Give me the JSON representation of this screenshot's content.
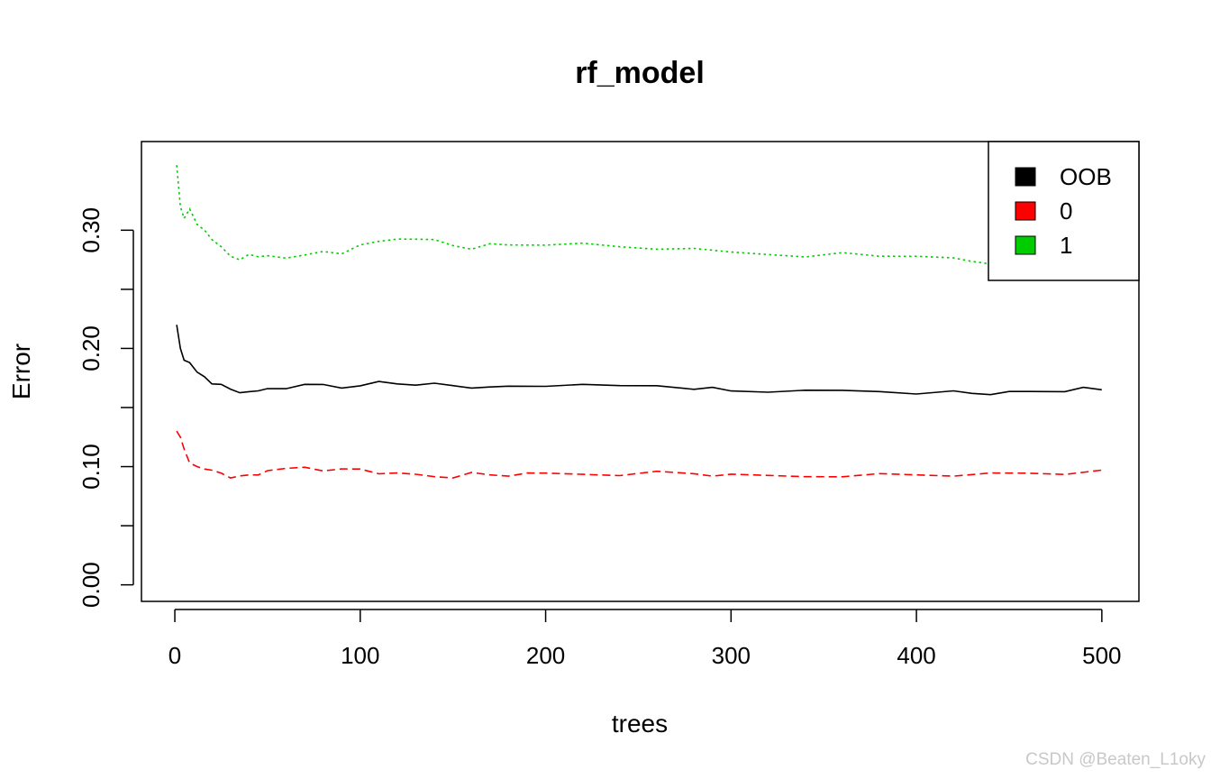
{
  "chart_data": {
    "type": "line",
    "title": "rf_model",
    "xlabel": "trees",
    "ylabel": "Error",
    "xlim": [
      1,
      500
    ],
    "ylim": [
      0.0,
      0.35
    ],
    "x_ticks": [
      0,
      100,
      200,
      300,
      400,
      500
    ],
    "x_tick_labels": [
      "0",
      "100",
      "200",
      "300",
      "400",
      "500"
    ],
    "y_ticks": [
      0.0,
      0.05,
      0.1,
      0.15,
      0.2,
      0.25,
      0.3
    ],
    "y_tick_labels": [
      "0.00",
      "",
      "0.10",
      "",
      "0.20",
      "",
      "0.30"
    ],
    "grid": false,
    "legend_position": "top-right",
    "series": [
      {
        "name": "OOB",
        "color": "#000000",
        "dash": "solid",
        "x": [
          1,
          3,
          5,
          8,
          12,
          16,
          20,
          25,
          30,
          35,
          40,
          45,
          50,
          60,
          70,
          80,
          90,
          100,
          110,
          120,
          130,
          140,
          150,
          160,
          170,
          180,
          190,
          200,
          220,
          240,
          260,
          280,
          290,
          300,
          320,
          340,
          360,
          380,
          400,
          420,
          430,
          440,
          450,
          460,
          470,
          480,
          490,
          500
        ],
        "y": [
          0.22,
          0.2,
          0.19,
          0.188,
          0.18,
          0.176,
          0.17,
          0.168,
          0.165,
          0.163,
          0.165,
          0.163,
          0.166,
          0.167,
          0.168,
          0.169,
          0.167,
          0.17,
          0.171,
          0.17,
          0.17,
          0.169,
          0.168,
          0.167,
          0.169,
          0.167,
          0.168,
          0.169,
          0.168,
          0.168,
          0.169,
          0.167,
          0.166,
          0.164,
          0.164,
          0.163,
          0.164,
          0.164,
          0.163,
          0.163,
          0.162,
          0.162,
          0.162,
          0.163,
          0.164,
          0.165,
          0.166,
          0.165
        ]
      },
      {
        "name": "0",
        "color": "#ff0000",
        "dash": "dashed",
        "x": [
          1,
          3,
          5,
          8,
          12,
          16,
          20,
          25,
          30,
          35,
          40,
          45,
          50,
          60,
          70,
          80,
          90,
          100,
          110,
          120,
          130,
          140,
          150,
          160,
          170,
          180,
          190,
          200,
          220,
          240,
          260,
          280,
          290,
          300,
          320,
          340,
          360,
          380,
          400,
          420,
          440,
          450,
          460,
          480,
          500
        ],
        "y": [
          0.13,
          0.125,
          0.115,
          0.103,
          0.1,
          0.098,
          0.097,
          0.095,
          0.092,
          0.091,
          0.093,
          0.094,
          0.095,
          0.098,
          0.1,
          0.098,
          0.097,
          0.098,
          0.095,
          0.093,
          0.093,
          0.092,
          0.092,
          0.094,
          0.093,
          0.093,
          0.093,
          0.094,
          0.094,
          0.094,
          0.095,
          0.094,
          0.093,
          0.092,
          0.092,
          0.092,
          0.093,
          0.093,
          0.093,
          0.093,
          0.093,
          0.094,
          0.095,
          0.095,
          0.096
        ]
      },
      {
        "name": "1",
        "color": "#00cd00",
        "dash": "dotted",
        "x": [
          1,
          3,
          5,
          8,
          12,
          16,
          20,
          25,
          30,
          35,
          40,
          45,
          50,
          60,
          70,
          80,
          90,
          100,
          110,
          120,
          130,
          140,
          150,
          160,
          170,
          180,
          190,
          200,
          220,
          240,
          260,
          280,
          300,
          320,
          340,
          360,
          380,
          400,
          420,
          430,
          440
        ],
        "y": [
          0.355,
          0.32,
          0.31,
          0.318,
          0.305,
          0.3,
          0.292,
          0.285,
          0.278,
          0.276,
          0.278,
          0.277,
          0.279,
          0.278,
          0.278,
          0.282,
          0.281,
          0.286,
          0.29,
          0.293,
          0.294,
          0.291,
          0.287,
          0.285,
          0.287,
          0.287,
          0.288,
          0.289,
          0.288,
          0.286,
          0.285,
          0.283,
          0.281,
          0.28,
          0.279,
          0.28,
          0.278,
          0.279,
          0.275,
          0.273,
          0.272
        ]
      }
    ]
  },
  "watermark": "CSDN @Beaten_L1oky"
}
